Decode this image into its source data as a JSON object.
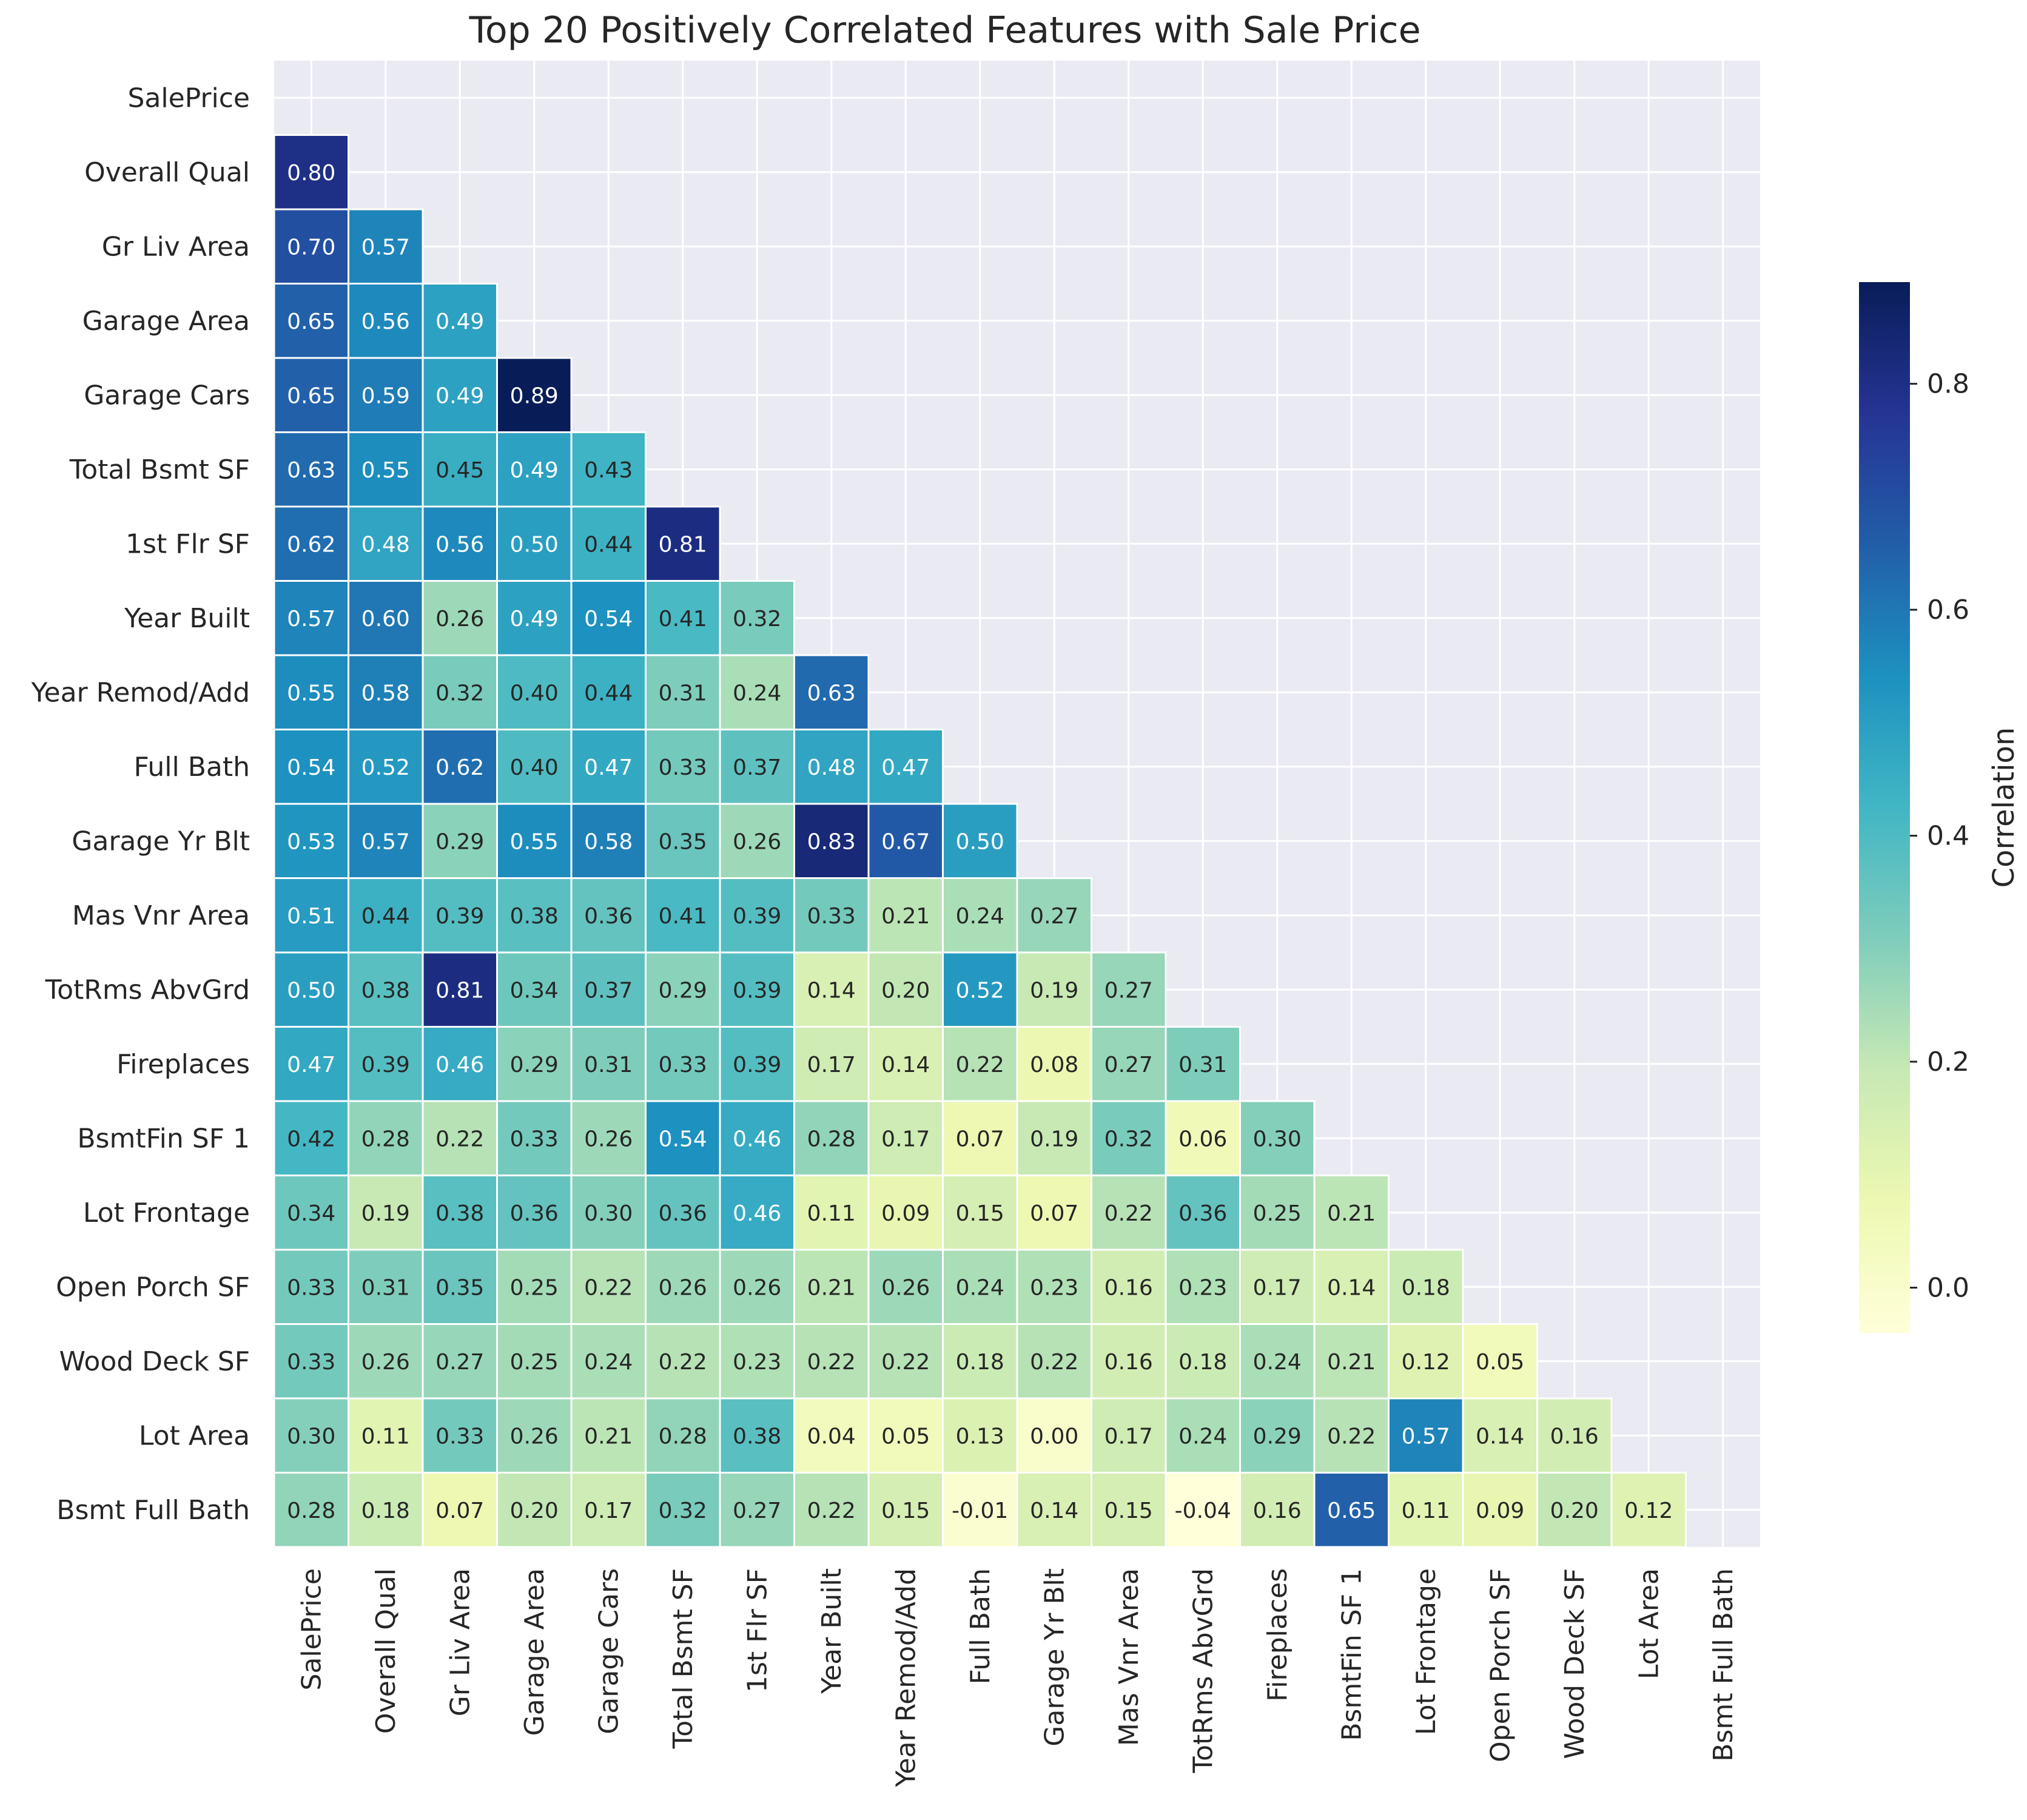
{
  "chart_data": {
    "type": "heatmap",
    "title": "Top 20 Positively Correlated Features with Sale Price",
    "features": [
      "SalePrice",
      "Overall Qual",
      "Gr Liv Area",
      "Garage Area",
      "Garage Cars",
      "Total Bsmt SF",
      "1st Flr SF",
      "Year Built",
      "Year Remod/Add",
      "Full Bath",
      "Garage Yr Blt",
      "Mas Vnr Area",
      "TotRms AbvGrd",
      "Fireplaces",
      "BsmtFin SF 1",
      "Lot Frontage",
      "Open Porch SF",
      "Wood Deck SF",
      "Lot Area",
      "Bsmt Full Bath"
    ],
    "mask": "upper-triangle-including-diagonal",
    "values": [
      [],
      [
        0.8
      ],
      [
        0.7,
        0.57
      ],
      [
        0.65,
        0.56,
        0.49
      ],
      [
        0.65,
        0.59,
        0.49,
        0.89
      ],
      [
        0.63,
        0.55,
        0.45,
        0.49,
        0.43
      ],
      [
        0.62,
        0.48,
        0.56,
        0.5,
        0.44,
        0.81
      ],
      [
        0.57,
        0.6,
        0.26,
        0.49,
        0.54,
        0.41,
        0.32
      ],
      [
        0.55,
        0.58,
        0.32,
        0.4,
        0.44,
        0.31,
        0.24,
        0.63
      ],
      [
        0.54,
        0.52,
        0.62,
        0.4,
        0.47,
        0.33,
        0.37,
        0.48,
        0.47
      ],
      [
        0.53,
        0.57,
        0.29,
        0.55,
        0.58,
        0.35,
        0.26,
        0.83,
        0.67,
        0.5
      ],
      [
        0.51,
        0.44,
        0.39,
        0.38,
        0.36,
        0.41,
        0.39,
        0.33,
        0.21,
        0.24,
        0.27
      ],
      [
        0.5,
        0.38,
        0.81,
        0.34,
        0.37,
        0.29,
        0.39,
        0.14,
        0.2,
        0.52,
        0.19,
        0.27
      ],
      [
        0.47,
        0.39,
        0.46,
        0.29,
        0.31,
        0.33,
        0.39,
        0.17,
        0.14,
        0.22,
        0.08,
        0.27,
        0.31
      ],
      [
        0.42,
        0.28,
        0.22,
        0.33,
        0.26,
        0.54,
        0.46,
        0.28,
        0.17,
        0.07,
        0.19,
        0.32,
        0.06,
        0.3
      ],
      [
        0.34,
        0.19,
        0.38,
        0.36,
        0.3,
        0.36,
        0.46,
        0.11,
        0.09,
        0.15,
        0.07,
        0.22,
        0.36,
        0.25,
        0.21
      ],
      [
        0.33,
        0.31,
        0.35,
        0.25,
        0.22,
        0.26,
        0.26,
        0.21,
        0.26,
        0.24,
        0.23,
        0.16,
        0.23,
        0.17,
        0.14,
        0.18
      ],
      [
        0.33,
        0.26,
        0.27,
        0.25,
        0.24,
        0.22,
        0.23,
        0.22,
        0.22,
        0.18,
        0.22,
        0.16,
        0.18,
        0.24,
        0.21,
        0.12,
        0.05
      ],
      [
        0.3,
        0.11,
        0.33,
        0.26,
        0.21,
        0.28,
        0.38,
        0.04,
        0.05,
        0.13,
        0.0,
        0.17,
        0.24,
        0.29,
        0.22,
        0.57,
        0.14,
        0.16
      ],
      [
        0.28,
        0.18,
        0.07,
        0.2,
        0.17,
        0.32,
        0.27,
        0.22,
        0.15,
        -0.01,
        0.14,
        0.15,
        -0.04,
        0.16,
        0.65,
        0.11,
        0.09,
        0.2,
        0.12
      ]
    ],
    "value_format": "0.00",
    "colormap": "YlGnBu",
    "colormap_stops": [
      "#ffffd9",
      "#edf8b1",
      "#c7e9b4",
      "#7fcdbb",
      "#41b6c4",
      "#1d91c0",
      "#225ea8",
      "#253494",
      "#081d58"
    ],
    "vmin": -0.04,
    "vmax": 0.89,
    "colorbar": {
      "label": "Correlation",
      "ticks": [
        0.0,
        0.2,
        0.4,
        0.6,
        0.8
      ],
      "tick_labels": [
        "0.0",
        "0.2",
        "0.4",
        "0.6",
        "0.8"
      ]
    },
    "grid": true,
    "background_color": "#eaeaf2"
  }
}
